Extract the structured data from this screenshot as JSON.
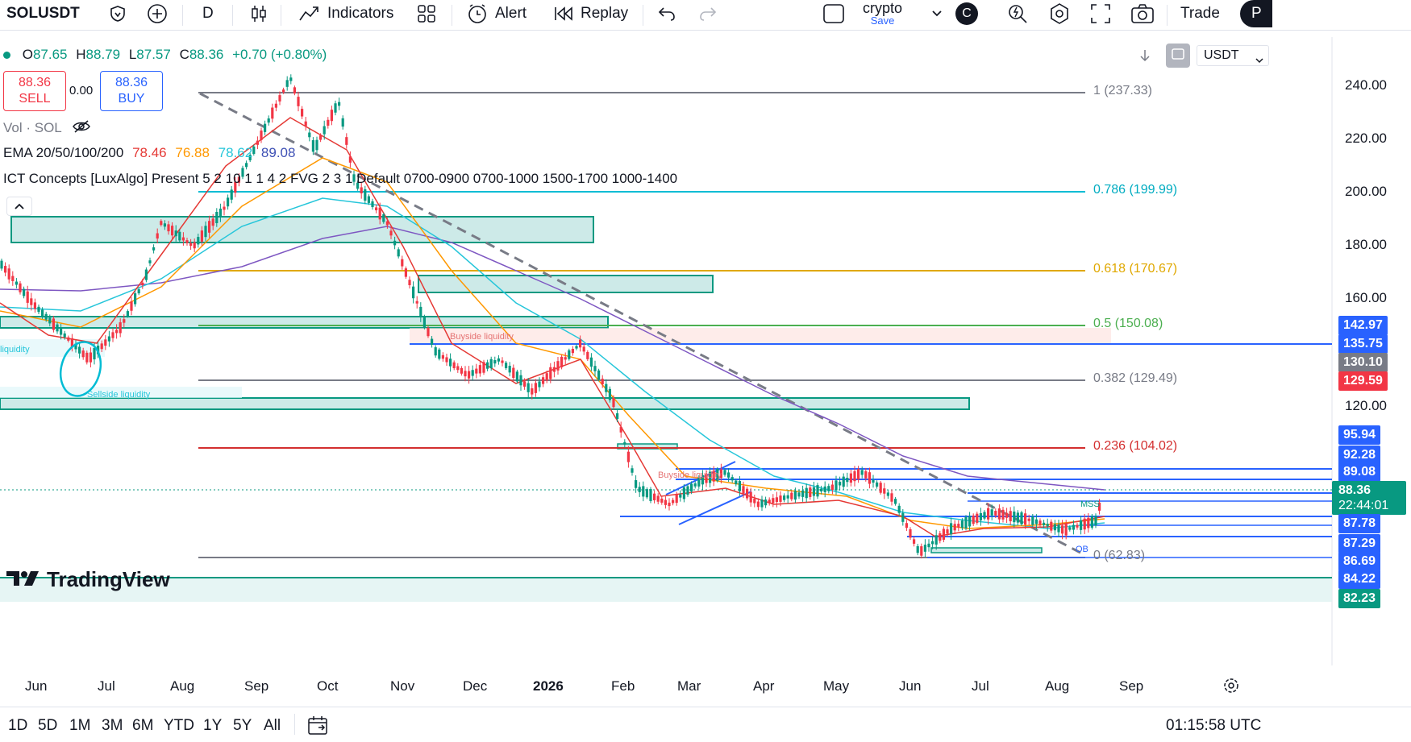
{
  "toolbar": {
    "symbol": "SOLUSDT",
    "interval": "D",
    "indicators": "Indicators",
    "alert": "Alert",
    "replay": "Replay",
    "layout_name": "crypto",
    "layout_save": "Save",
    "avatar_letter": "C",
    "trade": "Trade",
    "publish_partial": "P"
  },
  "legend": {
    "dot_color": "#089981",
    "o_label": "O",
    "o": "87.65",
    "h_label": "H",
    "h": "88.79",
    "l_label": "L",
    "l": "87.57",
    "c_label": "C",
    "c": "88.36",
    "change": "+0.70 (+0.80%)",
    "sell_price": "88.36",
    "sell_label": "SELL",
    "spread": "0.00",
    "buy_price": "88.36",
    "buy_label": "BUY",
    "vol": "Vol · SOL",
    "ema_label": "EMA 20/50/100/200",
    "ema20": "78.46",
    "ema50": "76.88",
    "ema100": "78.62",
    "ema200": "89.08",
    "ict": "ICT Concepts [LuxAlgo] Present 5 2 10 1 1 4 2 FVG 2 3 1 Default 0700-0900 0700-1000 1500-1700 1000-1400"
  },
  "currency": "USDT",
  "fib_levels": [
    {
      "label": "1 (237.33)",
      "color": "#787b86"
    },
    {
      "label": "0.786 (199.99)",
      "color": "#00bcd4"
    },
    {
      "label": "0.618 (170.67)",
      "color": "#e0a800"
    },
    {
      "label": "0.5 (150.08)",
      "color": "#4caf50"
    },
    {
      "label": "0.382 (129.49)",
      "color": "#787b86"
    },
    {
      "label": "0.236 (104.02)",
      "color": "#d32f2f"
    },
    {
      "label": "0 (62.83)",
      "color": "#787b86"
    }
  ],
  "annotations": {
    "buyside": "Buyside liquidity",
    "sellside": "Sellside liquidity",
    "liquidity": "liquidity",
    "mss": "MSS",
    "ob": "OB"
  },
  "price_axis": {
    "ticks": [
      "240.00",
      "220.00",
      "200.00",
      "180.00",
      "160.00",
      "120.00"
    ],
    "tags": [
      {
        "text": "142.97",
        "color": "#2962ff"
      },
      {
        "text": "135.75",
        "color": "#2962ff"
      },
      {
        "text": "130.10",
        "color": "#787b86"
      },
      {
        "text": "129.59",
        "color": "#f23645"
      },
      {
        "text": "95.94",
        "color": "#2962ff"
      },
      {
        "text": "92.28",
        "color": "#2962ff"
      },
      {
        "text": "89.08",
        "color": "#2962ff"
      },
      {
        "text": "88.36",
        "color": "#089981"
      },
      {
        "text": "22:44:01",
        "color": "#089981"
      },
      {
        "text": "87.78",
        "color": "#2962ff"
      },
      {
        "text": "87.29",
        "color": "#2962ff"
      },
      {
        "text": "86.69",
        "color": "#2962ff"
      },
      {
        "text": "84.22",
        "color": "#2962ff"
      },
      {
        "text": "82.23",
        "color": "#089981"
      }
    ]
  },
  "time_axis": [
    "Jun",
    "Jul",
    "Aug",
    "Sep",
    "Oct",
    "Nov",
    "Dec",
    "2026",
    "Feb",
    "Mar",
    "Apr",
    "May",
    "Jun",
    "Jul",
    "Aug",
    "Sep"
  ],
  "bottom": {
    "timeframes": [
      "1D",
      "5D",
      "1M",
      "3M",
      "6M",
      "YTD",
      "1Y",
      "5Y",
      "All"
    ],
    "clock": "01:15:58 UTC"
  },
  "watermark": "TradingView"
}
